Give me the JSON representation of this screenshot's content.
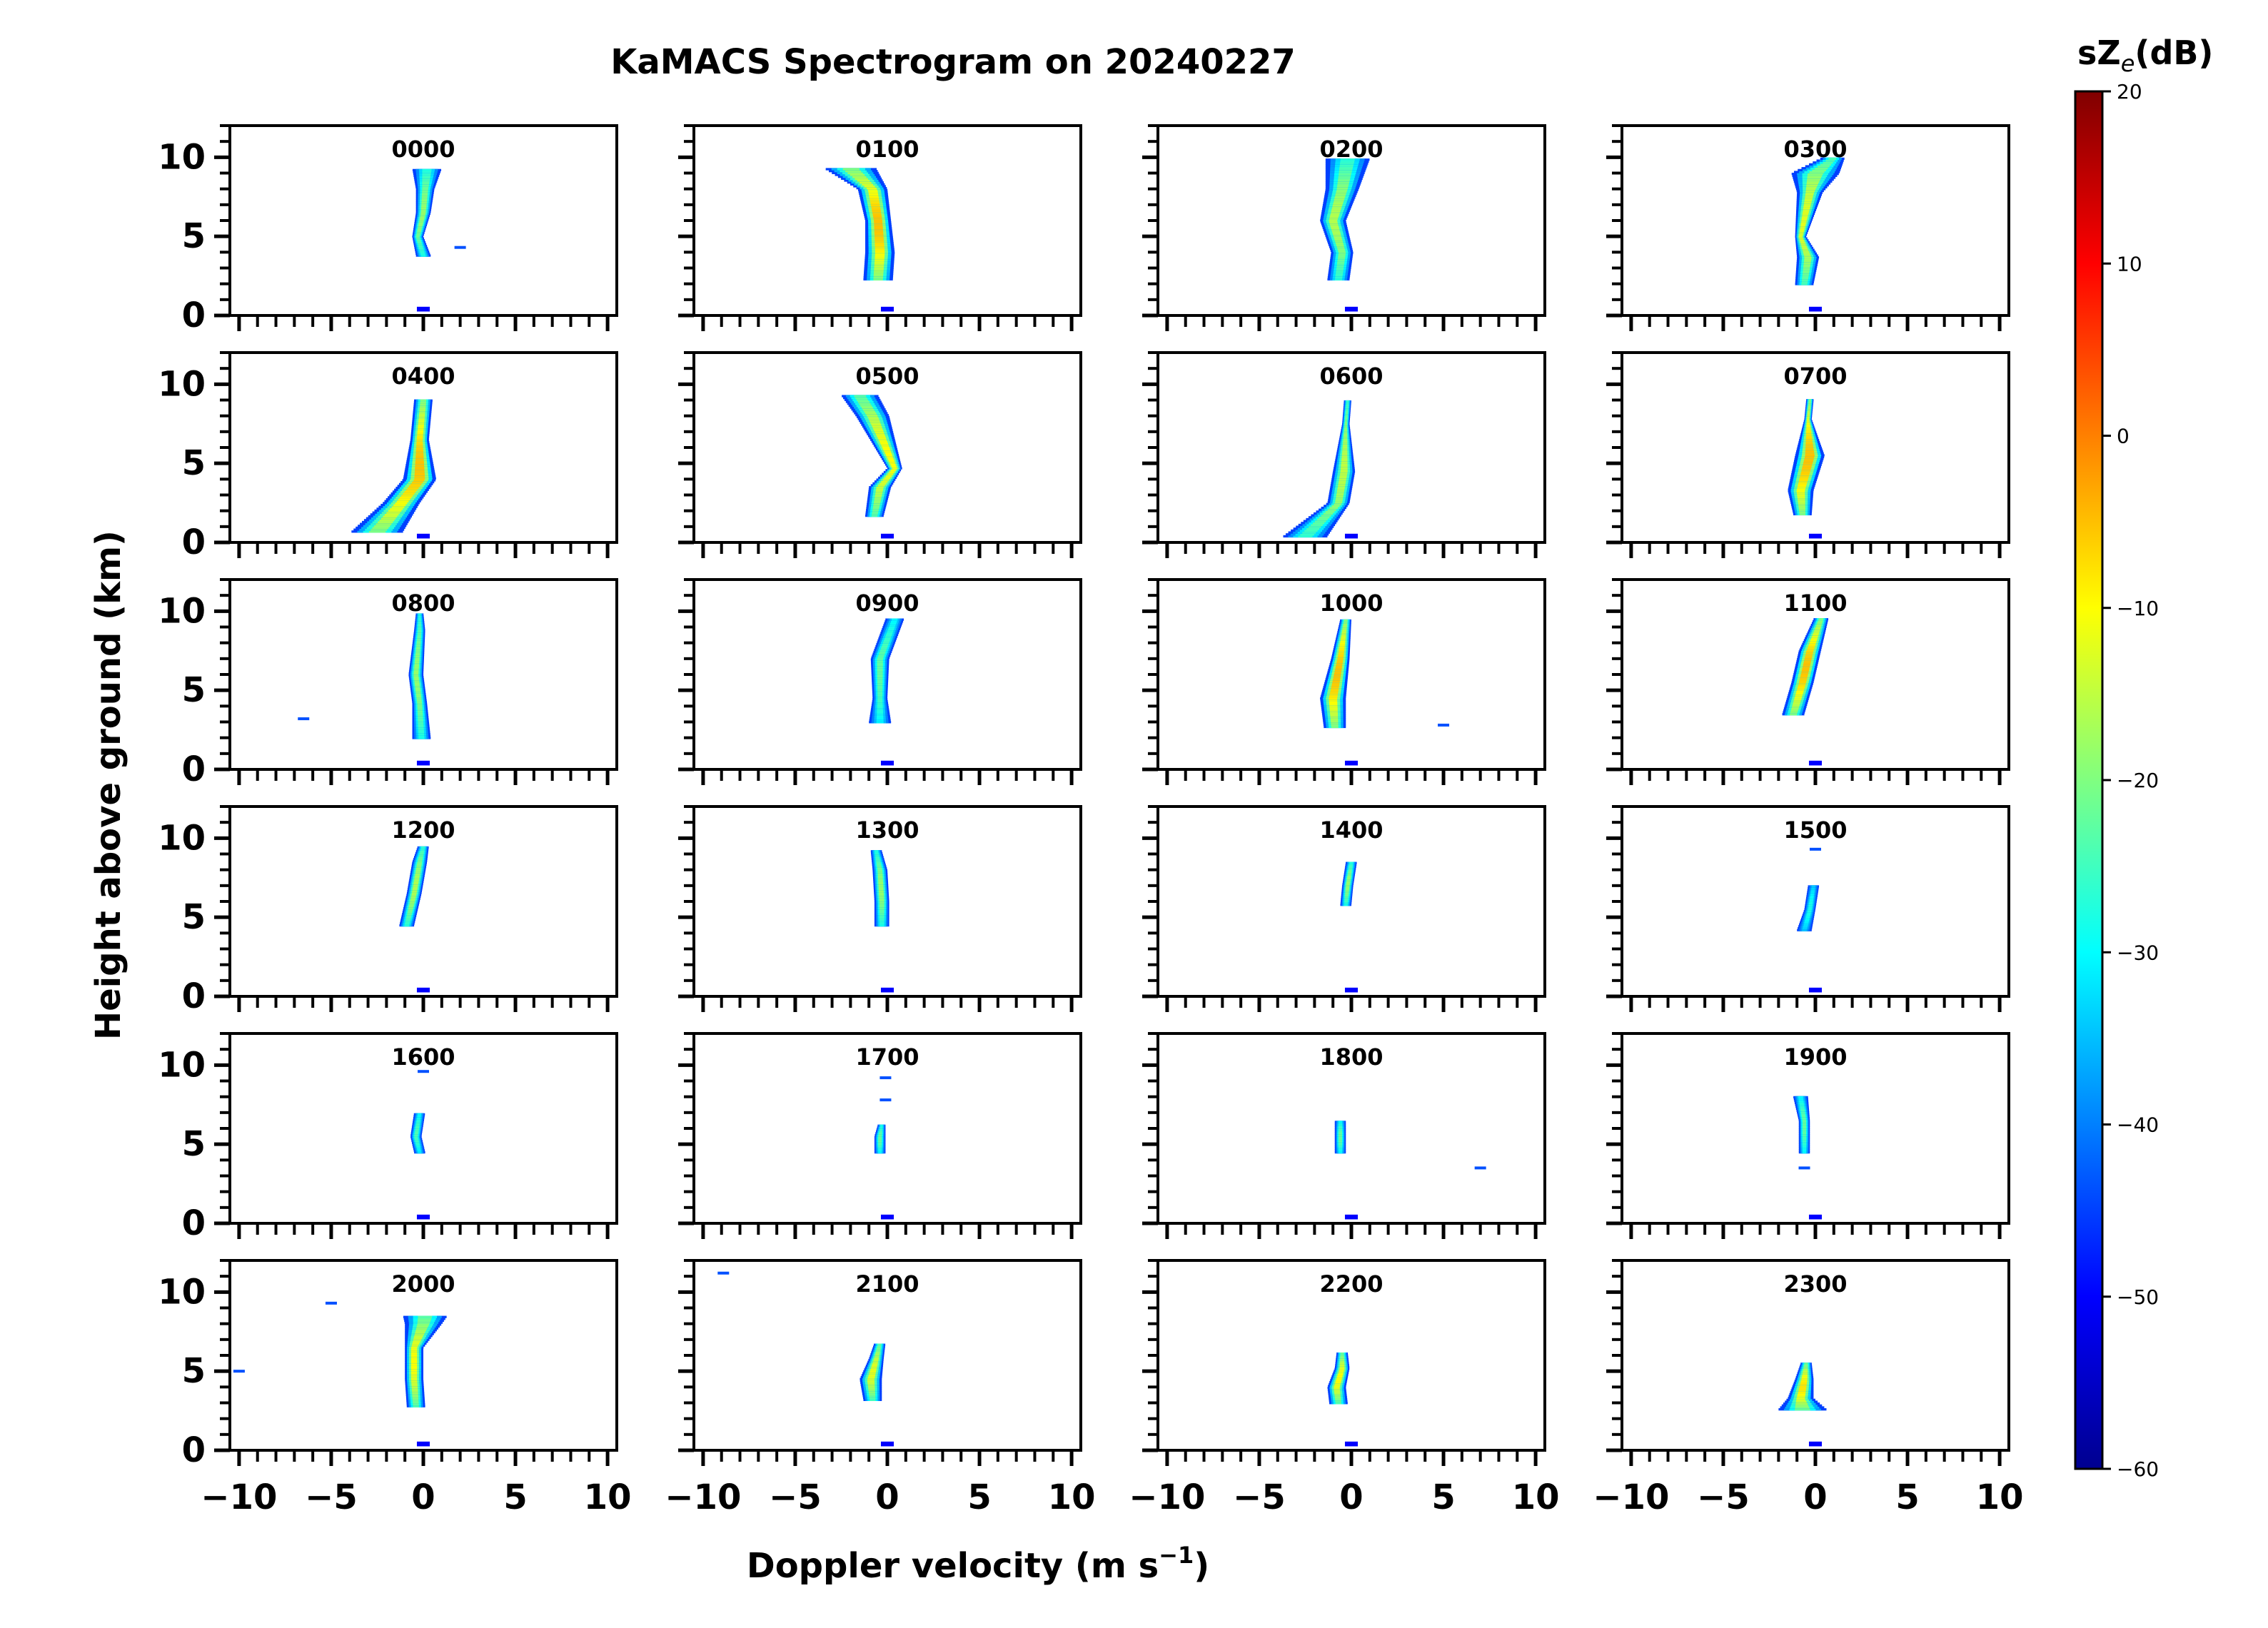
{
  "chart_data": {
    "type": "heatmap",
    "title": "KaMACS Spectrogram on 20240227",
    "xlabel": "Doppler velocity (m s",
    "xlabel_superscript": "−1",
    "xlabel_close": ")",
    "ylabel": "Height above ground (km)",
    "xlim": [
      -10.5,
      10.5
    ],
    "ylim": [
      0,
      12
    ],
    "xticks": [
      -10,
      -5,
      0,
      5,
      10
    ],
    "xtick_labels": [
      "−10",
      "−5",
      "0",
      "5",
      "10"
    ],
    "yticks": [
      0,
      5,
      10
    ],
    "ytick_labels": [
      "0",
      "5",
      "10"
    ],
    "grid": false,
    "colorbar": {
      "label_main": "sZ",
      "label_sub": "e",
      "label_unit": "(dB)",
      "range": [
        -60,
        20
      ],
      "ticks": [
        20,
        10,
        0,
        -10,
        -20,
        -30,
        -40,
        -50,
        -60
      ],
      "tick_labels": [
        "20",
        "10",
        "0",
        "−10",
        "−20",
        "−30",
        "−40",
        "−50",
        "−60"
      ],
      "colormap": [
        "#00008f",
        "#0000ff",
        "#0080ff",
        "#00ffff",
        "#80ff80",
        "#ffff00",
        "#ff8000",
        "#ff0000",
        "#800000"
      ]
    },
    "panels": [
      {
        "label": "0000",
        "profile": [
          [
            3.8,
            0.0,
            0.4
          ],
          [
            5.0,
            -0.3,
            0.3
          ],
          [
            6.5,
            0.0,
            0.4
          ],
          [
            8.0,
            0.1,
            0.5
          ],
          [
            9.3,
            0.2,
            0.8
          ]
        ],
        "peak_db": -18,
        "specks": [
          [
            4.3,
            2.0
          ]
        ]
      },
      {
        "label": "0100",
        "profile": [
          [
            2.3,
            -0.5,
            0.8
          ],
          [
            4.0,
            -0.4,
            0.8
          ],
          [
            6.0,
            -0.5,
            0.7
          ],
          [
            8.0,
            -0.8,
            0.8
          ],
          [
            9.3,
            -2.0,
            1.4
          ]
        ],
        "peak_db": -5,
        "specks": []
      },
      {
        "label": "0200",
        "profile": [
          [
            2.3,
            -0.7,
            0.6
          ],
          [
            4.0,
            -0.5,
            0.6
          ],
          [
            6.0,
            -1.0,
            0.7
          ],
          [
            8.0,
            -0.5,
            0.9
          ],
          [
            9.9,
            -0.2,
            1.2
          ]
        ],
        "peak_db": -16,
        "specks": []
      },
      {
        "label": "0300",
        "profile": [
          [
            2.0,
            -0.6,
            0.5
          ],
          [
            3.7,
            -0.4,
            0.6
          ],
          [
            5.0,
            -0.8,
            0.3
          ],
          [
            7.8,
            -0.3,
            0.7
          ],
          [
            9.0,
            0.0,
            1.3
          ],
          [
            10.0,
            1.0,
            0.6
          ]
        ],
        "peak_db": -12,
        "specks": []
      },
      {
        "label": "0400",
        "profile": [
          [
            0.7,
            -2.5,
            1.4
          ],
          [
            2.5,
            -1.2,
            1.0
          ],
          [
            4.0,
            -0.2,
            0.9
          ],
          [
            6.5,
            -0.2,
            0.5
          ],
          [
            9.0,
            0.0,
            0.5
          ]
        ],
        "peak_db": -5,
        "specks": []
      },
      {
        "label": "0500",
        "profile": [
          [
            1.7,
            -0.7,
            0.5
          ],
          [
            3.5,
            -0.4,
            0.6
          ],
          [
            4.7,
            0.4,
            0.4
          ],
          [
            8.0,
            -0.8,
            0.9
          ],
          [
            9.3,
            -1.5,
            1.0
          ]
        ],
        "peak_db": -10,
        "specks": []
      },
      {
        "label": "0600",
        "profile": [
          [
            0.4,
            -2.5,
            1.2
          ],
          [
            2.5,
            -0.7,
            0.6
          ],
          [
            4.5,
            -0.4,
            0.6
          ],
          [
            7.5,
            -0.3,
            0.2
          ],
          [
            9.0,
            -0.2,
            0.2
          ]
        ],
        "peak_db": -15,
        "specks": []
      },
      {
        "label": "0700",
        "profile": [
          [
            1.8,
            -0.7,
            0.5
          ],
          [
            3.3,
            -0.8,
            0.7
          ],
          [
            5.5,
            -0.3,
            0.8
          ],
          [
            7.8,
            -0.4,
            0.2
          ],
          [
            9.0,
            -0.3,
            0.2
          ]
        ],
        "peak_db": -5,
        "specks": []
      },
      {
        "label": "0800",
        "profile": [
          [
            2.0,
            -0.1,
            0.5
          ],
          [
            4.2,
            -0.2,
            0.4
          ],
          [
            6.0,
            -0.4,
            0.4
          ],
          [
            8.8,
            -0.2,
            0.3
          ],
          [
            9.9,
            -0.2,
            0.2
          ]
        ],
        "peak_db": -18,
        "specks": [
          [
            3.2,
            -6.5
          ]
        ]
      },
      {
        "label": "0900",
        "profile": [
          [
            3.0,
            -0.4,
            0.6
          ],
          [
            4.5,
            -0.4,
            0.4
          ],
          [
            7.0,
            -0.4,
            0.5
          ],
          [
            9.5,
            0.4,
            0.5
          ]
        ],
        "peak_db": -22,
        "specks": []
      },
      {
        "label": "1000",
        "profile": [
          [
            2.7,
            -0.9,
            0.6
          ],
          [
            4.5,
            -1.0,
            0.7
          ],
          [
            7.0,
            -0.6,
            0.5
          ],
          [
            9.5,
            -0.3,
            0.3
          ]
        ],
        "peak_db": -5,
        "specks": [
          [
            2.8,
            5.0
          ]
        ]
      },
      {
        "label": "1100",
        "profile": [
          [
            3.5,
            -1.2,
            0.6
          ],
          [
            5.5,
            -0.7,
            0.6
          ],
          [
            7.5,
            -0.3,
            0.6
          ],
          [
            9.5,
            0.3,
            0.4
          ]
        ],
        "peak_db": -5,
        "specks": []
      },
      {
        "label": "1200",
        "profile": [
          [
            4.5,
            -0.9,
            0.4
          ],
          [
            6.5,
            -0.5,
            0.4
          ],
          [
            8.5,
            -0.2,
            0.4
          ],
          [
            9.5,
            0.0,
            0.3
          ]
        ],
        "peak_db": -16,
        "specks": []
      },
      {
        "label": "1300",
        "profile": [
          [
            4.5,
            -0.3,
            0.4
          ],
          [
            6.0,
            -0.3,
            0.4
          ],
          [
            8.0,
            -0.4,
            0.4
          ],
          [
            9.2,
            -0.6,
            0.3
          ]
        ],
        "peak_db": -18,
        "specks": []
      },
      {
        "label": "1400",
        "profile": [
          [
            5.8,
            -0.3,
            0.3
          ],
          [
            7.0,
            -0.2,
            0.3
          ],
          [
            8.5,
            0.0,
            0.3
          ]
        ],
        "peak_db": -18,
        "specks": []
      },
      {
        "label": "1500",
        "profile": [
          [
            4.2,
            -0.6,
            0.4
          ],
          [
            5.5,
            -0.3,
            0.3
          ],
          [
            7.0,
            -0.1,
            0.3
          ]
        ],
        "peak_db": -28,
        "specks": [
          [
            9.3,
            0.0
          ]
        ]
      },
      {
        "label": "1600",
        "profile": [
          [
            4.5,
            -0.2,
            0.3
          ],
          [
            5.5,
            -0.4,
            0.3
          ],
          [
            7.0,
            -0.2,
            0.3
          ]
        ],
        "peak_db": -24,
        "specks": [
          [
            9.6,
            0.0
          ]
        ]
      },
      {
        "label": "1700",
        "profile": [
          [
            4.5,
            -0.4,
            0.3
          ],
          [
            5.5,
            -0.4,
            0.3
          ],
          [
            6.3,
            -0.3,
            0.2
          ]
        ],
        "peak_db": -22,
        "specks": [
          [
            7.8,
            -0.1
          ],
          [
            9.2,
            -0.1
          ]
        ]
      },
      {
        "label": "1800",
        "profile": [
          [
            4.5,
            -0.6,
            0.3
          ],
          [
            5.5,
            -0.6,
            0.3
          ],
          [
            6.5,
            -0.6,
            0.3
          ]
        ],
        "peak_db": -22,
        "specks": [
          [
            3.5,
            7.0
          ]
        ]
      },
      {
        "label": "1900",
        "profile": [
          [
            4.5,
            -0.6,
            0.3
          ],
          [
            5.5,
            -0.6,
            0.3
          ],
          [
            6.5,
            -0.6,
            0.3
          ],
          [
            8.0,
            -0.8,
            0.4
          ]
        ],
        "peak_db": -22,
        "specks": [
          [
            3.5,
            -0.6
          ]
        ]
      },
      {
        "label": "2000",
        "profile": [
          [
            2.8,
            -0.4,
            0.5
          ],
          [
            4.5,
            -0.5,
            0.5
          ],
          [
            6.5,
            -0.5,
            0.5
          ],
          [
            8.0,
            0.0,
            1.0
          ],
          [
            8.5,
            0.1,
            1.2
          ]
        ],
        "peak_db": -10,
        "specks": [
          [
            9.3,
            -5.0
          ],
          [
            5.0,
            -10.0
          ]
        ]
      },
      {
        "label": "2100",
        "profile": [
          [
            3.2,
            -0.8,
            0.5
          ],
          [
            4.5,
            -0.9,
            0.6
          ],
          [
            5.8,
            -0.6,
            0.4
          ],
          [
            6.8,
            -0.4,
            0.3
          ]
        ],
        "peak_db": -12,
        "specks": [
          [
            11.2,
            -8.9
          ]
        ]
      },
      {
        "label": "2200",
        "profile": [
          [
            3.0,
            -0.7,
            0.5
          ],
          [
            4.0,
            -0.8,
            0.5
          ],
          [
            5.2,
            -0.5,
            0.4
          ],
          [
            6.2,
            -0.5,
            0.3
          ]
        ],
        "peak_db": -10,
        "specks": []
      },
      {
        "label": "2300",
        "profile": [
          [
            2.6,
            -0.7,
            1.3
          ],
          [
            3.3,
            -0.8,
            0.7
          ],
          [
            4.5,
            -0.6,
            0.5
          ],
          [
            5.5,
            -0.5,
            0.3
          ]
        ],
        "peak_db": -8,
        "specks": []
      }
    ],
    "surface_echo": {
      "height": 0.4,
      "velocity": 0.0,
      "half_width": 0.35
    }
  }
}
